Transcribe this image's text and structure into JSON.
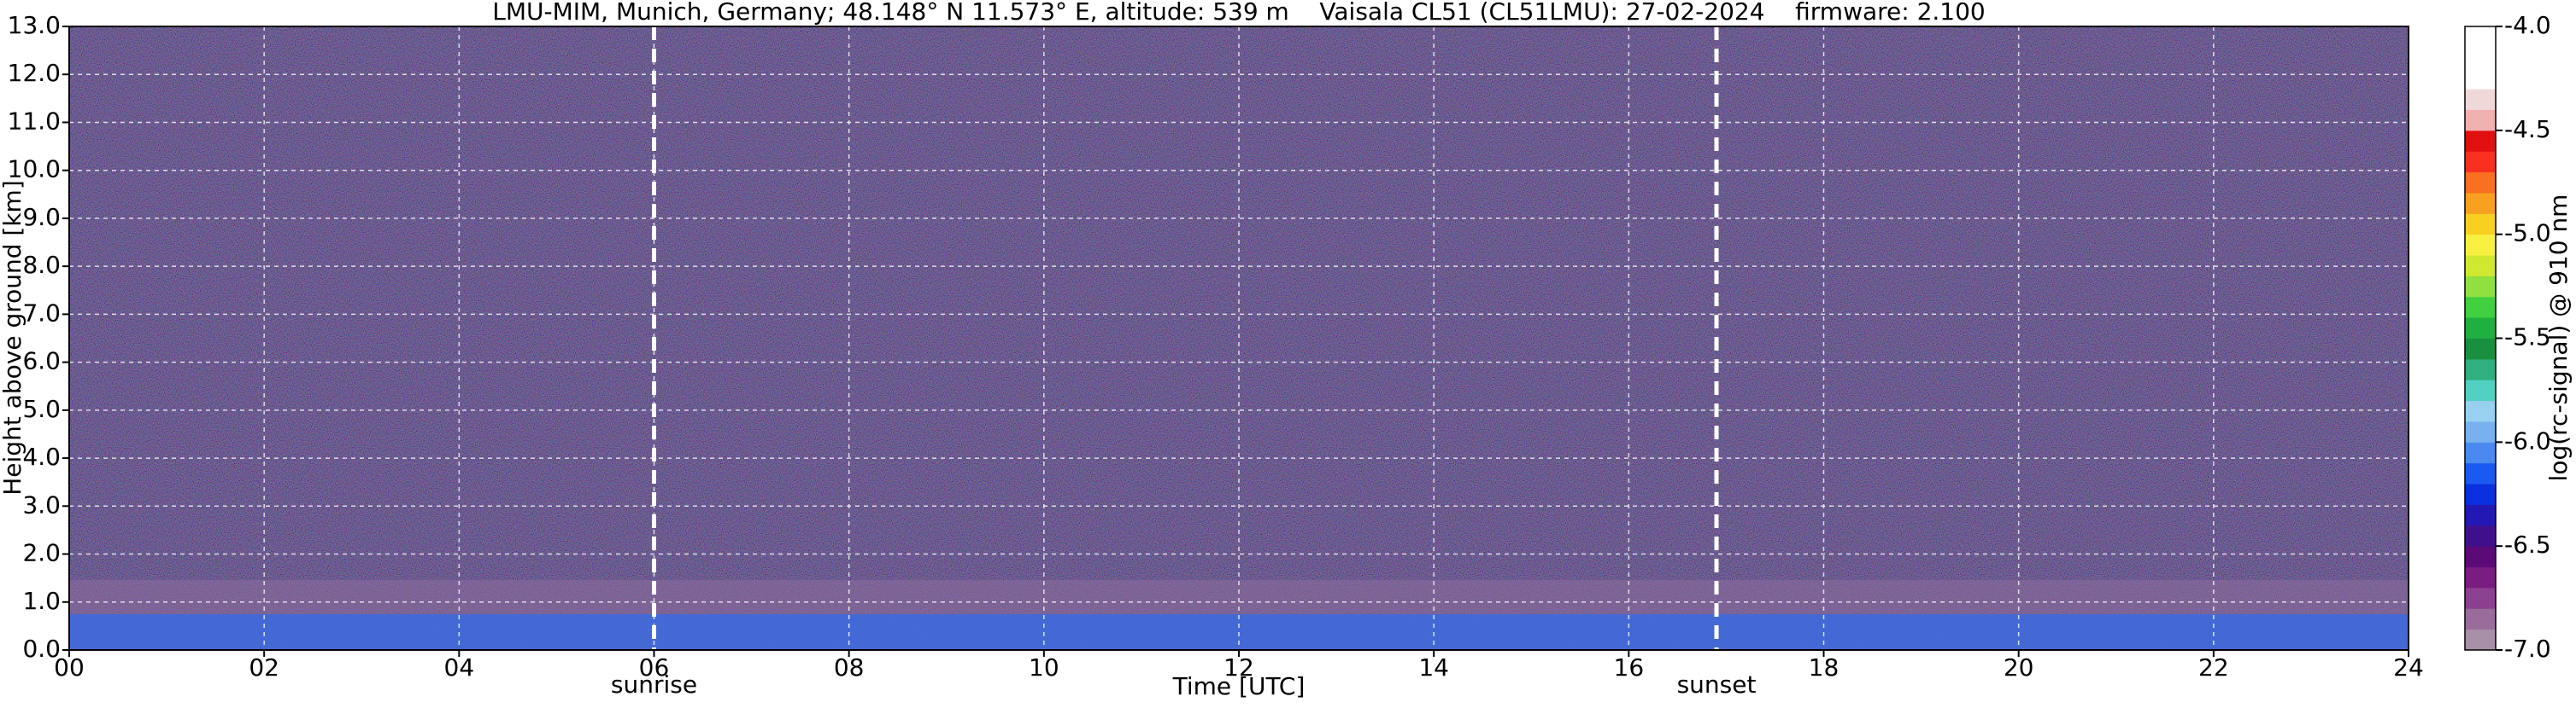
{
  "chart_data": {
    "type": "heatmap",
    "title": "LMU-MIM, Munich, Germany; 48.148° N 11.573° E, altitude: 539 m    Vaisala CL51 (CL51LMU): 27-02-2024    firmware: 2.100",
    "x_label": "Time [UTC]",
    "y_label": "Height above ground [km]",
    "xlim": [
      0,
      24
    ],
    "xticks": [
      {
        "value": 0,
        "label": "00"
      },
      {
        "value": 2,
        "label": "02"
      },
      {
        "value": 4,
        "label": "04"
      },
      {
        "value": 6,
        "label": "06"
      },
      {
        "value": 8,
        "label": "08"
      },
      10,
      12,
      14,
      16,
      18,
      20,
      22,
      24
    ],
    "ylim": [
      0,
      13
    ],
    "yticks": [
      {
        "value": 0,
        "label": "0.0"
      },
      {
        "value": 1,
        "label": "1.0"
      },
      {
        "value": 2,
        "label": "2.0"
      },
      {
        "value": 3,
        "label": "3.0"
      },
      {
        "value": 4,
        "label": "4.0"
      },
      {
        "value": 5,
        "label": "5.0"
      },
      {
        "value": 6,
        "label": "6.0"
      },
      {
        "value": 7,
        "label": "7.0"
      },
      {
        "value": 8,
        "label": "8.0"
      },
      {
        "value": 9,
        "label": "9.0"
      },
      {
        "value": 10,
        "label": "10.0"
      },
      {
        "value": 11,
        "label": "11.0"
      },
      {
        "value": 12,
        "label": "12.0"
      },
      {
        "value": 13,
        "label": "13.0"
      }
    ],
    "grid": true,
    "annotations": [
      {
        "label": "sunrise",
        "x": 6.0
      },
      {
        "label": "sunset",
        "x": 16.9
      }
    ],
    "colorbar": {
      "label": "log(rc-signal) @ 910 nm",
      "lim": [
        -7,
        -4
      ],
      "ticks": [
        {
          "value": -7,
          "label": "-7.0"
        },
        {
          "value": -6.5,
          "label": "-6.5"
        },
        {
          "value": -6,
          "label": "-6.0"
        },
        {
          "value": -5.5,
          "label": "-5.5"
        },
        {
          "value": -5,
          "label": "-5.0"
        },
        {
          "value": -4.5,
          "label": "-4.5"
        },
        {
          "value": -4,
          "label": "-4.0"
        }
      ],
      "colors": [
        "#a890a8",
        "#9a6c9c",
        "#8c4090",
        "#7a1c82",
        "#5c0a78",
        "#40108c",
        "#2418b4",
        "#0a30e0",
        "#1a5af0",
        "#4a8af0",
        "#78b0f0",
        "#98d0f0",
        "#50d0c0",
        "#30b080",
        "#189040",
        "#20b040",
        "#40d040",
        "#90e040",
        "#d0e830",
        "#f8f040",
        "#f8d020",
        "#f8a020",
        "#f87020",
        "#f83020",
        "#e01010",
        "#f0b0b0",
        "#f0d8d8",
        "#ffffff",
        "#ffffff",
        "#ffffff"
      ]
    }
  }
}
